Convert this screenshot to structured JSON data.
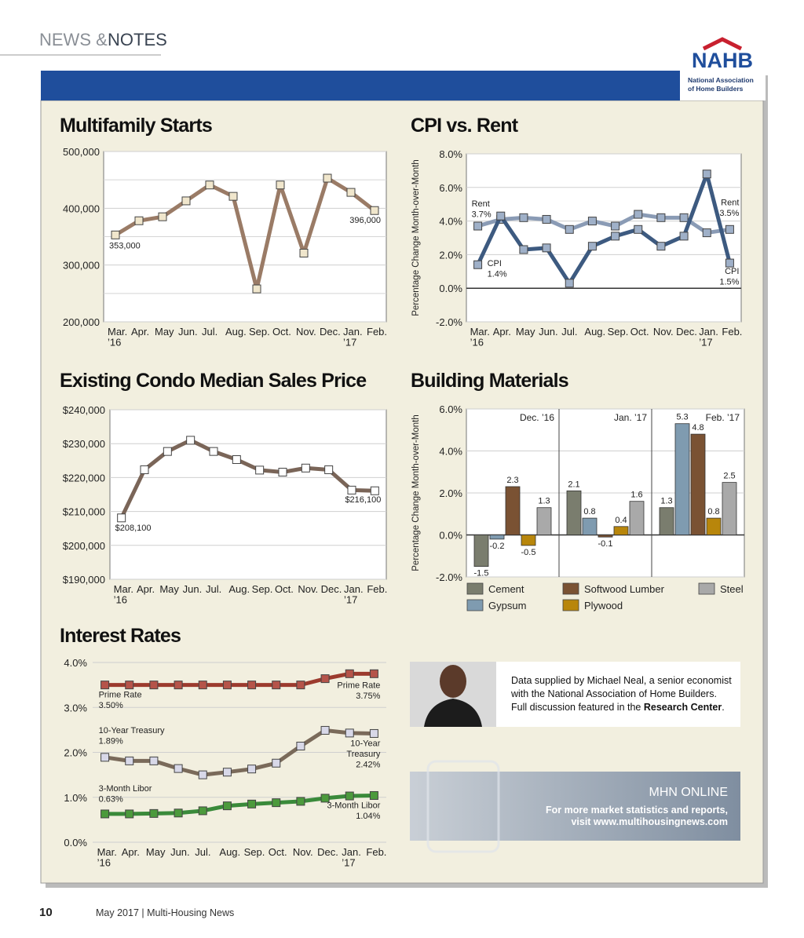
{
  "header": {
    "section": "NEWS &",
    "section2": "NOTES"
  },
  "logo": {
    "name": "NAHB",
    "tagline": [
      "National Association",
      "of Home Builders"
    ]
  },
  "chart_data": [
    {
      "type": "line",
      "title": "Multifamily Starts",
      "categories": [
        "Mar. ’16",
        "Apr.",
        "May",
        "Jun.",
        "Jul.",
        "Aug.",
        "Sep.",
        "Oct.",
        "Nov.",
        "Dec.",
        "Jan. ’17",
        "Feb."
      ],
      "values": [
        353000,
        378000,
        385000,
        413000,
        441000,
        421000,
        258000,
        441000,
        321000,
        453000,
        428000,
        396000
      ],
      "value_labels": [
        "353,000",
        null,
        null,
        null,
        null,
        null,
        null,
        null,
        null,
        null,
        null,
        "396,000"
      ],
      "color": "#9a7b66",
      "marker_color": "#f0e6cc",
      "ylim": [
        200000,
        500000
      ],
      "yticks": [
        {
          "value": 200000,
          "label": "200,000"
        },
        {
          "value": 300000,
          "label": "300,000"
        },
        {
          "value": 400000,
          "label": "400,000"
        },
        {
          "value": 500000,
          "label": "500,000"
        }
      ],
      "ygrid_minor": [
        250000,
        350000,
        450000
      ],
      "grid": true
    },
    {
      "type": "line",
      "title": "CPI vs. Rent",
      "y_label": "Percentage Change Month-over-Month",
      "categories": [
        "Mar. ’16",
        "Apr.",
        "May",
        "Jun.",
        "Jul.",
        "Aug.",
        "Sep.",
        "Oct.",
        "Nov.",
        "Dec.",
        "Jan. ’17",
        "Feb."
      ],
      "series": [
        {
          "name": "Rent",
          "color": "#8a9bb5",
          "marker_color": "#9fb0c8",
          "values": [
            3.7,
            4.1,
            4.2,
            4.1,
            3.5,
            4.0,
            3.7,
            4.4,
            4.2,
            4.2,
            3.3,
            3.5
          ],
          "value_labels": [
            "Rent 3.7%",
            null,
            null,
            null,
            null,
            null,
            null,
            null,
            null,
            null,
            null,
            "Rent 3.5%"
          ]
        },
        {
          "name": "CPI",
          "color": "#3d5a80",
          "marker_color": "#9fb0c8",
          "values": [
            1.4,
            4.3,
            2.3,
            2.4,
            0.3,
            2.5,
            3.1,
            3.5,
            2.5,
            3.1,
            6.8,
            1.5
          ],
          "value_labels": [
            "CPI 1.4%",
            null,
            null,
            null,
            null,
            null,
            null,
            null,
            null,
            null,
            null,
            "CPI 1.5%"
          ]
        }
      ],
      "ylim": [
        -2,
        8
      ],
      "yticks": [
        {
          "value": -2,
          "label": "-2.0%"
        },
        {
          "value": 0,
          "label": "0.0%"
        },
        {
          "value": 2,
          "label": "2.0%"
        },
        {
          "value": 4,
          "label": "4.0%"
        },
        {
          "value": 6,
          "label": "6.0%"
        },
        {
          "value": 8,
          "label": "8.0%"
        }
      ],
      "grid": true
    },
    {
      "type": "line",
      "title": "Existing Condo Median Sales Price",
      "categories": [
        "Mar. ’16",
        "Apr.",
        "May",
        "Jun.",
        "Jul.",
        "Aug.",
        "Sep.",
        "Oct.",
        "Nov.",
        "Dec.",
        "Jan. ’17",
        "Feb."
      ],
      "values": [
        208100,
        222300,
        227700,
        231000,
        227700,
        225300,
        222200,
        221600,
        222800,
        222300,
        216300,
        216100
      ],
      "value_labels": [
        "$208,100",
        null,
        null,
        null,
        null,
        null,
        null,
        null,
        null,
        null,
        null,
        "$216,100"
      ],
      "color": "#7a6558",
      "marker_color": "#ffffff",
      "ylim": [
        190000,
        240000
      ],
      "yticks": [
        {
          "value": 190000,
          "label": "$190,000"
        },
        {
          "value": 200000,
          "label": "$200,000"
        },
        {
          "value": 210000,
          "label": "$210,000"
        },
        {
          "value": 220000,
          "label": "$220,000"
        },
        {
          "value": 230000,
          "label": "$230,000"
        },
        {
          "value": 240000,
          "label": "$240,000"
        }
      ],
      "grid": true
    },
    {
      "type": "bar",
      "title": "Building Materials",
      "y_label": "Percentage Change Month-over-Month",
      "categories": [
        "Dec. ’16",
        "Jan. ’17",
        "Feb. ’17"
      ],
      "series": [
        {
          "name": "Cement",
          "color": "#7a7d6e",
          "values": [
            -1.5,
            2.1,
            1.3
          ]
        },
        {
          "name": "Gypsum",
          "color": "#7f9bb0",
          "values": [
            -0.2,
            0.8,
            5.3
          ]
        },
        {
          "name": "Softwood Lumber",
          "color": "#7a5233",
          "values": [
            2.3,
            -0.1,
            4.8
          ]
        },
        {
          "name": "Plywood",
          "color": "#b8860b",
          "values": [
            -0.5,
            0.4,
            0.8
          ]
        },
        {
          "name": "Steel",
          "color": "#a9a9a9",
          "values": [
            1.3,
            1.6,
            2.5
          ]
        }
      ],
      "ylim": [
        -2,
        6
      ],
      "yticks": [
        {
          "value": -2,
          "label": "-2.0%"
        },
        {
          "value": 0,
          "label": "0.0%"
        },
        {
          "value": 2,
          "label": "2.0%"
        },
        {
          "value": 4,
          "label": "4.0%"
        },
        {
          "value": 6,
          "label": "6.0%"
        }
      ],
      "grid": true
    },
    {
      "type": "line",
      "title": "Interest Rates",
      "categories": [
        "Mar. ’16",
        "Apr.",
        "May",
        "Jun.",
        "Jul.",
        "Aug.",
        "Sep.",
        "Oct.",
        "Nov.",
        "Dec.",
        "Jan. ’17",
        "Feb."
      ],
      "series": [
        {
          "name": "Prime Rate",
          "color": "#9c3b2e",
          "marker_color": "#b5544a",
          "values": [
            3.5,
            3.5,
            3.5,
            3.5,
            3.5,
            3.5,
            3.5,
            3.5,
            3.5,
            3.64,
            3.75,
            3.75
          ],
          "value_labels": [
            "Prime Rate 3.50%",
            null,
            null,
            null,
            null,
            null,
            null,
            null,
            null,
            null,
            null,
            "Prime Rate 3.75%"
          ]
        },
        {
          "name": "10-Year Treasury",
          "color": "#7a6a5a",
          "marker_color": "#d8d8e8",
          "values": [
            1.89,
            1.81,
            1.81,
            1.64,
            1.5,
            1.56,
            1.63,
            1.76,
            2.14,
            2.49,
            2.43,
            2.42
          ],
          "value_labels": [
            "10-Year Treasury 1.89%",
            null,
            null,
            null,
            null,
            null,
            null,
            null,
            null,
            null,
            null,
            "10-Year Treasury 2.42%"
          ]
        },
        {
          "name": "3-Month Libor",
          "color": "#3a8a3a",
          "marker_color": "#4c9a3c",
          "values": [
            0.63,
            0.63,
            0.64,
            0.65,
            0.7,
            0.81,
            0.85,
            0.88,
            0.91,
            0.98,
            1.03,
            1.04
          ],
          "value_labels": [
            "3-Month Libor 0.63%",
            null,
            null,
            null,
            null,
            null,
            null,
            null,
            null,
            null,
            null,
            "3-Month Libor 1.04%"
          ]
        }
      ],
      "ylim": [
        0,
        4
      ],
      "yticks": [
        {
          "value": 0,
          "label": "0.0%"
        },
        {
          "value": 1,
          "label": "1.0%"
        },
        {
          "value": 2,
          "label": "2.0%"
        },
        {
          "value": 3,
          "label": "3.0%"
        },
        {
          "value": 4,
          "label": "4.0%"
        }
      ],
      "grid": true
    }
  ],
  "credit": {
    "text": "Data supplied by Michael Neal, a senior economist with the National Association of Home Builders. Full discussion featured in the",
    "link": "Research Center",
    "end": "."
  },
  "promo": {
    "title": "MHN ONLINE",
    "lines": [
      "For more market statistics and reports,",
      "visit www.multihousingnews.com"
    ]
  },
  "footer": {
    "page": "10",
    "issue": "May 2017 | Multi-Housing News"
  }
}
